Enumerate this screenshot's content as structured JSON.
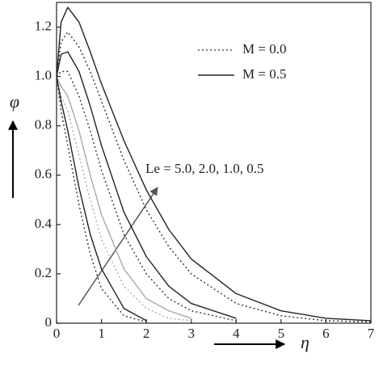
{
  "chart_data": {
    "type": "line",
    "x": [
      0,
      0.1,
      0.25,
      0.5,
      0.75,
      1,
      1.5,
      2,
      2.5,
      3,
      4,
      5,
      6,
      7
    ],
    "xlim": [
      0,
      7
    ],
    "xticks": [
      0,
      1,
      2,
      3,
      4,
      5,
      6,
      7
    ],
    "ylim": [
      0,
      1.3
    ],
    "yticks": [
      0,
      0.2,
      0.4,
      0.6,
      0.8,
      {
        "value": 1,
        "label": "1.0"
      },
      1.2
    ],
    "xlabel": "η",
    "ylabel": "φ",
    "annotation": "Le = 5.0, 2.0, 1.0, 0.5",
    "legend": [
      {
        "name": "M = 0.0",
        "dash": "dotted",
        "color": "#555555"
      },
      {
        "name": "M = 0.5",
        "dash": "solid",
        "color": "#222222"
      }
    ],
    "series": [
      {
        "dash": "solid",
        "color": "#222222",
        "values": [
          1,
          1.22,
          1.28,
          1.22,
          1.1,
          0.97,
          0.74,
          0.54,
          0.38,
          0.26,
          0.12,
          0.05,
          0.02,
          0.01
        ]
      },
      {
        "dash": "dotted",
        "color": "#333333",
        "values": [
          1,
          1.14,
          1.18,
          1.12,
          1.02,
          0.9,
          0.66,
          0.46,
          0.31,
          0.2,
          0.08,
          0.03,
          0.01,
          0.005
        ]
      },
      {
        "dash": "solid",
        "color": "#222222",
        "values": [
          1,
          1.09,
          1.1,
          1.02,
          0.88,
          0.72,
          0.45,
          0.27,
          0.15,
          0.08,
          0.02,
          null,
          null,
          null
        ]
      },
      {
        "dash": "dotted",
        "color": "#333333",
        "values": [
          1,
          1.02,
          1.02,
          0.92,
          0.78,
          0.62,
          0.36,
          0.2,
          0.1,
          0.05,
          0.01,
          null,
          null,
          null
        ]
      },
      {
        "dash": "solid",
        "color": "#aaaaaa",
        "values": [
          1,
          0.96,
          0.92,
          0.78,
          0.6,
          0.44,
          0.22,
          0.1,
          0.05,
          0.02,
          null,
          null,
          null,
          null
        ]
      },
      {
        "dash": "dotted",
        "color": "#aaaaaa",
        "values": [
          1,
          0.92,
          0.86,
          0.68,
          0.5,
          0.34,
          0.15,
          0.06,
          0.02,
          0.01,
          null,
          null,
          null,
          null
        ]
      },
      {
        "dash": "solid",
        "color": "#222222",
        "values": [
          1,
          0.9,
          0.78,
          0.55,
          0.36,
          0.22,
          0.06,
          0.01,
          null,
          null,
          null,
          null,
          null,
          null
        ]
      },
      {
        "dash": "dotted",
        "color": "#333333",
        "values": [
          1,
          0.86,
          0.72,
          0.48,
          0.28,
          0.14,
          0.03,
          0.005,
          null,
          null,
          null,
          null,
          null,
          null
        ]
      }
    ]
  }
}
